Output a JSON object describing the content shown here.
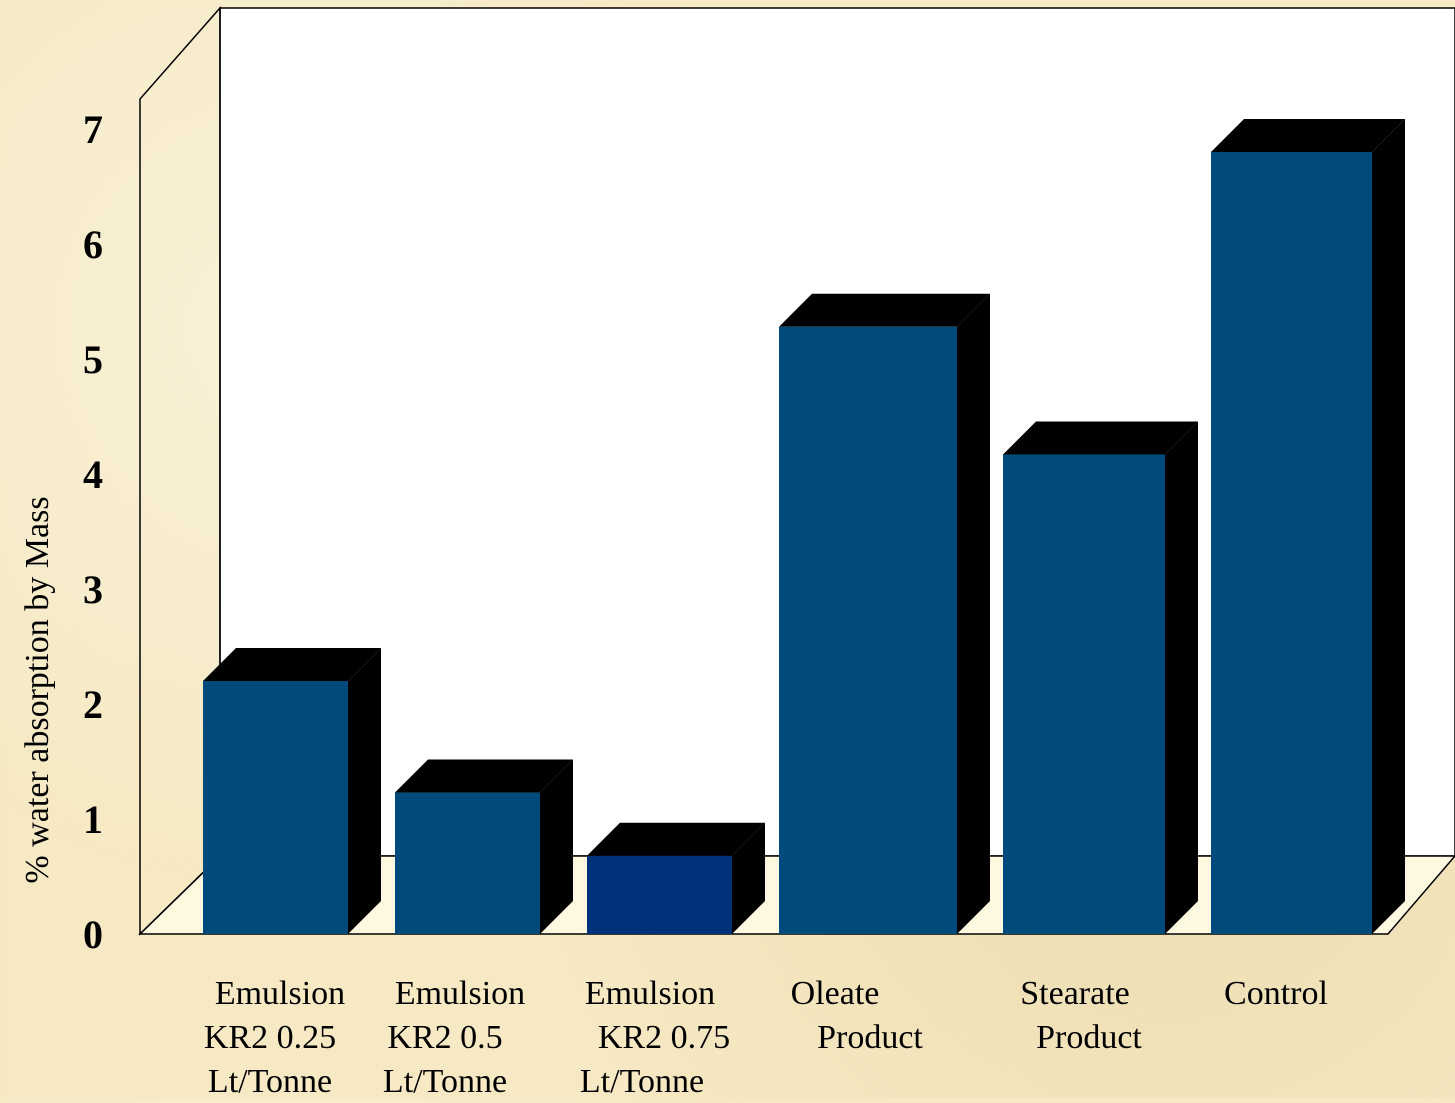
{
  "chart_data": {
    "type": "bar",
    "style": "3d",
    "title": "",
    "xlabel": "",
    "ylabel": "% water absorption by Mass",
    "ylim": [
      0,
      7
    ],
    "yticks": [
      "0",
      "1",
      "2",
      "3",
      "4",
      "5",
      "6",
      "7"
    ],
    "grid": false,
    "legend": "none",
    "categories": [
      [
        "Emulsion",
        "KR2 0.25",
        "Lt/Tonne"
      ],
      [
        "Emulsion",
        "KR2 0.5",
        "Lt/Tonne"
      ],
      [
        "Emulsion",
        "KR2 0.75",
        "Lt/Tonne"
      ],
      [
        "Oleate",
        "Product"
      ],
      [
        "Stearate",
        "Product"
      ],
      [
        "Control"
      ]
    ],
    "values": [
      2.2,
      1.23,
      0.68,
      5.28,
      4.17,
      6.8
    ],
    "colors": {
      "bar": "#004b7c",
      "bar_highlight": "#00327a",
      "bar_side": "#000000",
      "plot_back": "#ffffff",
      "plot_floor": "#fff8e0"
    },
    "highlight_index": 2
  }
}
